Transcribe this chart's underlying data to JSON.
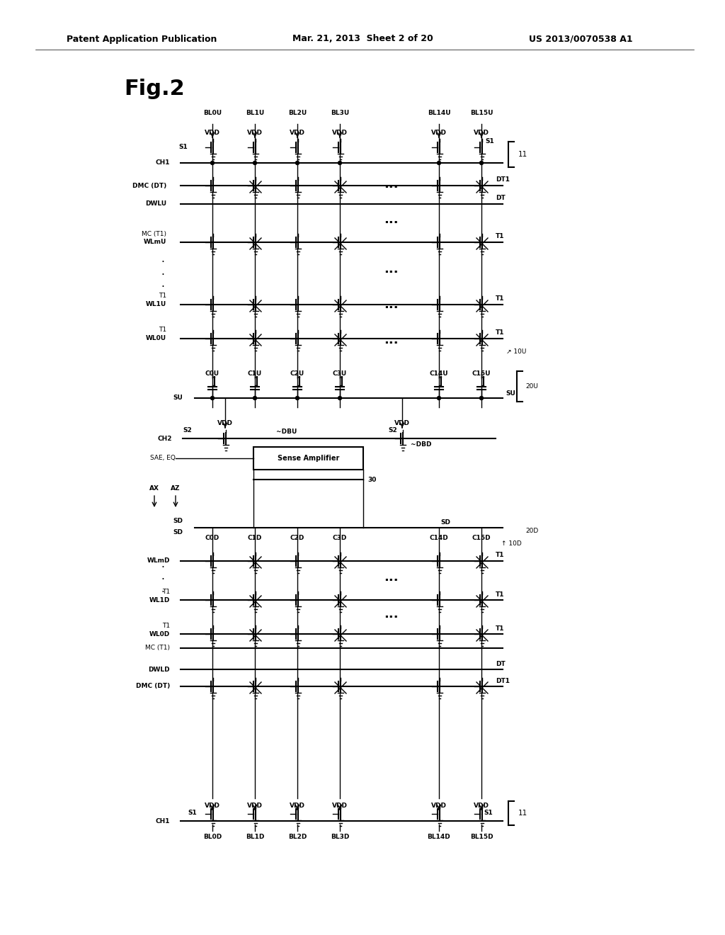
{
  "bg_color": "#ffffff",
  "header_left": "Patent Application Publication",
  "header_center": "Mar. 21, 2013  Sheet 2 of 20",
  "header_right": "US 2013/0070538 A1",
  "fig_label": "Fig.2"
}
